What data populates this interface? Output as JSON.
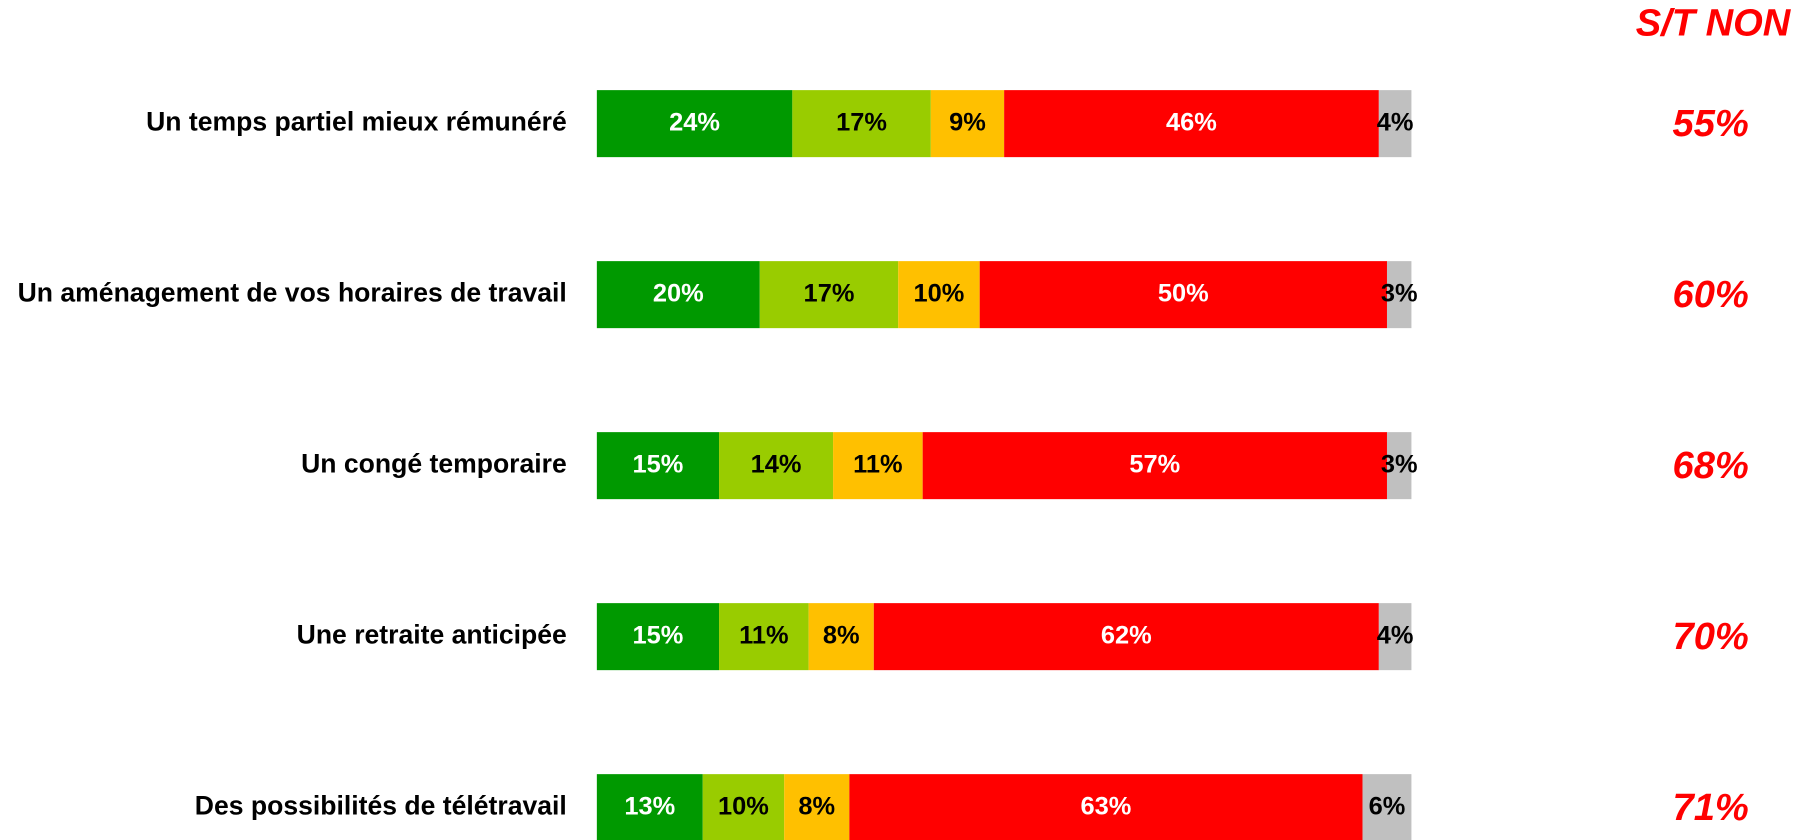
{
  "chart_data": {
    "type": "stacked-barh",
    "categories": [
      "Un temps partiel mieux rémunéré",
      "Un aménagement de vos horaires de travail",
      "Un congé temporaire",
      "Une retraite anticipée",
      "Des possibilités de télétravail"
    ],
    "series": [
      {
        "color": "#009900",
        "label_color": "#ffffff",
        "values": [
          24,
          20,
          15,
          15,
          13
        ],
        "value_labels": [
          "24%",
          "20%",
          "15%",
          "15%",
          "13%"
        ]
      },
      {
        "color": "#99cc00",
        "label_color": "#000000",
        "values": [
          17,
          17,
          14,
          11,
          10
        ],
        "value_labels": [
          "17%",
          "17%",
          "14%",
          "11%",
          "10%"
        ]
      },
      {
        "color": "#ffc000",
        "label_color": "#000000",
        "values": [
          9,
          10,
          11,
          8,
          8
        ],
        "value_labels": [
          "9%",
          "10%",
          "11%",
          "8%",
          "8%"
        ]
      },
      {
        "color": "#ff0000",
        "label_color": "#ffffff",
        "values": [
          46,
          50,
          57,
          62,
          63
        ],
        "value_labels": [
          "46%",
          "50%",
          "57%",
          "62%",
          "63%"
        ]
      },
      {
        "color": "#c0c0c0",
        "label_color": "#000000",
        "values": [
          4,
          3,
          3,
          4,
          6
        ],
        "value_labels": [
          "4%",
          "3%",
          "3%",
          "4%",
          "6%"
        ]
      }
    ],
    "xlim": [
      0,
      100
    ],
    "totals": {
      "title": "S/T NON",
      "color": "#ff0000",
      "values": [
        55,
        60,
        68,
        70,
        71
      ],
      "value_labels": [
        "55%",
        "60%",
        "68%",
        "70%",
        "71%"
      ]
    }
  }
}
